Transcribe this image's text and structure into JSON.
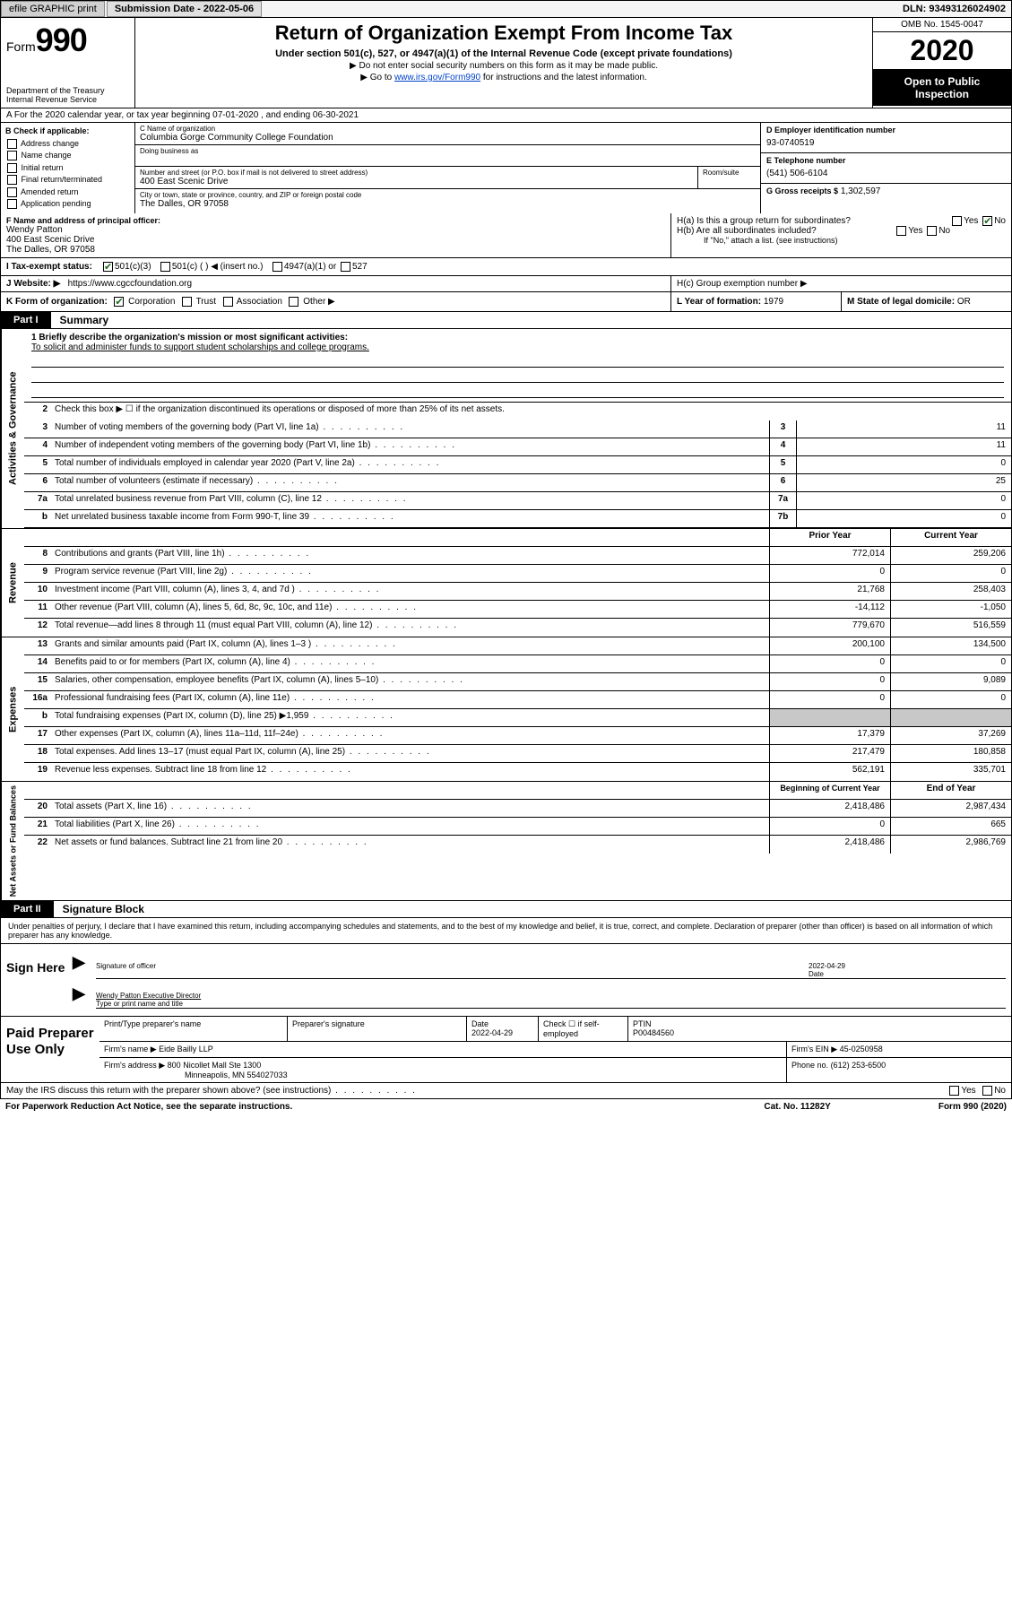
{
  "topbar": {
    "efile": "efile GRAPHIC print",
    "submission": "Submission Date - 2022-05-06",
    "dln": "DLN: 93493126024902"
  },
  "header": {
    "form_word": "Form",
    "form_num": "990",
    "dept": "Department of the Treasury\nInternal Revenue Service",
    "title": "Return of Organization Exempt From Income Tax",
    "sub1": "Under section 501(c), 527, or 4947(a)(1) of the Internal Revenue Code (except private foundations)",
    "sub2a": "▶ Do not enter social security numbers on this form as it may be made public.",
    "sub2b_pre": "▶ Go to ",
    "sub2b_link": "www.irs.gov/Form990",
    "sub2b_post": " for instructions and the latest information.",
    "omb": "OMB No. 1545-0047",
    "year": "2020",
    "inspect": "Open to Public Inspection"
  },
  "rowA": "A For the 2020 calendar year, or tax year beginning 07-01-2020   , and ending 06-30-2021",
  "colB": {
    "title": "B Check if applicable:",
    "items": [
      "Address change",
      "Name change",
      "Initial return",
      "Final return/terminated",
      "Amended return",
      "Application pending"
    ]
  },
  "colC": {
    "name_lbl": "C Name of organization",
    "name": "Columbia Gorge Community College Foundation",
    "dba_lbl": "Doing business as",
    "addr_lbl": "Number and street (or P.O. box if mail is not delivered to street address)",
    "addr": "400 East Scenic Drive",
    "room_lbl": "Room/suite",
    "city_lbl": "City or town, state or province, country, and ZIP or foreign postal code",
    "city": "The Dalles, OR  97058"
  },
  "colD": {
    "ein_lbl": "D Employer identification number",
    "ein": "93-0740519",
    "tel_lbl": "E Telephone number",
    "tel": "(541) 506-6104",
    "gross_lbl": "G Gross receipts $",
    "gross": "1,302,597"
  },
  "rowF": {
    "lbl": "F Name and address of principal officer:",
    "name": "Wendy Patton",
    "addr1": "400 East Scenic Drive",
    "addr2": "The Dalles, OR  97058"
  },
  "rowH": {
    "ha": "H(a)  Is this a group return for subordinates?",
    "hb": "H(b)  Are all subordinates included?",
    "hnote": "If \"No,\" attach a list. (see instructions)",
    "hc": "H(c)  Group exemption number ▶"
  },
  "rowI": {
    "lbl": "I  Tax-exempt status:",
    "opts": [
      "501(c)(3)",
      "501(c) (  ) ◀ (insert no.)",
      "4947(a)(1) or",
      "527"
    ]
  },
  "rowJ": {
    "lbl": "J  Website: ▶",
    "val": "https://www.cgccfoundation.org"
  },
  "rowK": {
    "lbl": "K Form of organization:",
    "opts": [
      "Corporation",
      "Trust",
      "Association",
      "Other ▶"
    ]
  },
  "rowL": {
    "lbl": "L Year of formation:",
    "val": "1979"
  },
  "rowM": {
    "lbl": "M State of legal domicile:",
    "val": "OR"
  },
  "part1": {
    "tab": "Part I",
    "title": "Summary"
  },
  "mission": {
    "q": "1   Briefly describe the organization's mission or most significant activities:",
    "a": "To solicit and administer funds to support student scholarships and college programs."
  },
  "governance": {
    "label": "Activities & Governance",
    "line2": "Check this box ▶ ☐ if the organization discontinued its operations or disposed of more than 25% of its net assets.",
    "rows": [
      {
        "n": "3",
        "d": "Number of voting members of the governing body (Part VI, line 1a)",
        "b": "3",
        "v": "11"
      },
      {
        "n": "4",
        "d": "Number of independent voting members of the governing body (Part VI, line 1b)",
        "b": "4",
        "v": "11"
      },
      {
        "n": "5",
        "d": "Total number of individuals employed in calendar year 2020 (Part V, line 2a)",
        "b": "5",
        "v": "0"
      },
      {
        "n": "6",
        "d": "Total number of volunteers (estimate if necessary)",
        "b": "6",
        "v": "25"
      },
      {
        "n": "7a",
        "d": "Total unrelated business revenue from Part VIII, column (C), line 12",
        "b": "7a",
        "v": "0"
      },
      {
        "n": "b",
        "d": "Net unrelated business taxable income from Form 990-T, line 39",
        "b": "7b",
        "v": "0"
      }
    ]
  },
  "revenue": {
    "label": "Revenue",
    "hdr_prior": "Prior Year",
    "hdr_curr": "Current Year",
    "rows": [
      {
        "n": "8",
        "d": "Contributions and grants (Part VIII, line 1h)",
        "p": "772,014",
        "c": "259,206"
      },
      {
        "n": "9",
        "d": "Program service revenue (Part VIII, line 2g)",
        "p": "0",
        "c": "0"
      },
      {
        "n": "10",
        "d": "Investment income (Part VIII, column (A), lines 3, 4, and 7d )",
        "p": "21,768",
        "c": "258,403"
      },
      {
        "n": "11",
        "d": "Other revenue (Part VIII, column (A), lines 5, 6d, 8c, 9c, 10c, and 11e)",
        "p": "-14,112",
        "c": "-1,050"
      },
      {
        "n": "12",
        "d": "Total revenue—add lines 8 through 11 (must equal Part VIII, column (A), line 12)",
        "p": "779,670",
        "c": "516,559"
      }
    ]
  },
  "expenses": {
    "label": "Expenses",
    "rows": [
      {
        "n": "13",
        "d": "Grants and similar amounts paid (Part IX, column (A), lines 1–3 )",
        "p": "200,100",
        "c": "134,500"
      },
      {
        "n": "14",
        "d": "Benefits paid to or for members (Part IX, column (A), line 4)",
        "p": "0",
        "c": "0"
      },
      {
        "n": "15",
        "d": "Salaries, other compensation, employee benefits (Part IX, column (A), lines 5–10)",
        "p": "0",
        "c": "9,089"
      },
      {
        "n": "16a",
        "d": "Professional fundraising fees (Part IX, column (A), line 11e)",
        "p": "0",
        "c": "0"
      },
      {
        "n": "b",
        "d": "Total fundraising expenses (Part IX, column (D), line 25) ▶1,959",
        "p": "",
        "c": "",
        "shaded": true
      },
      {
        "n": "17",
        "d": "Other expenses (Part IX, column (A), lines 11a–11d, 11f–24e)",
        "p": "17,379",
        "c": "37,269"
      },
      {
        "n": "18",
        "d": "Total expenses. Add lines 13–17 (must equal Part IX, column (A), line 25)",
        "p": "217,479",
        "c": "180,858"
      },
      {
        "n": "19",
        "d": "Revenue less expenses. Subtract line 18 from line 12",
        "p": "562,191",
        "c": "335,701"
      }
    ]
  },
  "netassets": {
    "label": "Net Assets or Fund Balances",
    "hdr_beg": "Beginning of Current Year",
    "hdr_end": "End of Year",
    "rows": [
      {
        "n": "20",
        "d": "Total assets (Part X, line 16)",
        "p": "2,418,486",
        "c": "2,987,434"
      },
      {
        "n": "21",
        "d": "Total liabilities (Part X, line 26)",
        "p": "0",
        "c": "665"
      },
      {
        "n": "22",
        "d": "Net assets or fund balances. Subtract line 21 from line 20",
        "p": "2,418,486",
        "c": "2,986,769"
      }
    ]
  },
  "part2": {
    "tab": "Part II",
    "title": "Signature Block"
  },
  "perjury": "Under penalties of perjury, I declare that I have examined this return, including accompanying schedules and statements, and to the best of my knowledge and belief, it is true, correct, and complete. Declaration of preparer (other than officer) is based on all information of which preparer has any knowledge.",
  "sign": {
    "here": "Sign Here",
    "sig_lbl": "Signature of officer",
    "date_lbl": "Date",
    "date": "2022-04-29",
    "name": "Wendy Patton  Executive Director",
    "name_lbl": "Type or print name and title"
  },
  "prep": {
    "here": "Paid Preparer Use Only",
    "r1": {
      "c1": "Print/Type preparer's name",
      "c2": "Preparer's signature",
      "c3": "Date",
      "c3v": "2022-04-29",
      "c4": "Check ☐ if self-employed",
      "c5": "PTIN",
      "c5v": "P00484560"
    },
    "r2": {
      "c1": "Firm's name    ▶",
      "c1v": "Eide Bailly LLP",
      "c2": "Firm's EIN ▶",
      "c2v": "45-0250958"
    },
    "r3": {
      "c1": "Firm's address ▶",
      "c1v": "800 Nicollet Mall Ste 1300",
      "c2": "Phone no.",
      "c2v": "(612) 253-6500"
    },
    "r3b": "Minneapolis, MN  554027033"
  },
  "discuss": "May the IRS discuss this return with the preparer shown above? (see instructions)",
  "footer": {
    "left": "For Paperwork Reduction Act Notice, see the separate instructions.",
    "mid": "Cat. No. 11282Y",
    "right": "Form 990 (2020)"
  }
}
